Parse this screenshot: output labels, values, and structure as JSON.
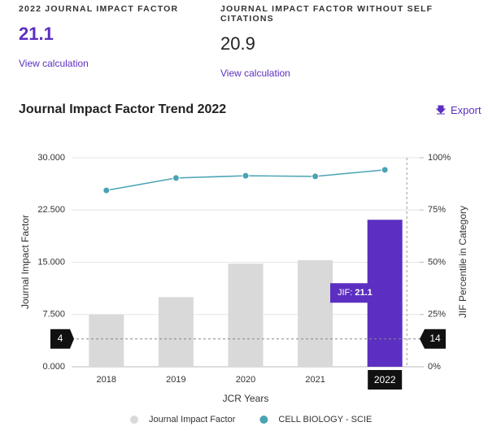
{
  "metrics": [
    {
      "label": "2022 JOURNAL IMPACT FACTOR",
      "value": 21.1,
      "link": "View calculation"
    },
    {
      "label": "JOURNAL IMPACT FACTOR WITHOUT SELF CITATIONS",
      "value": 20.9,
      "link": "View calculation"
    }
  ],
  "section": {
    "title": "Journal Impact Factor Trend 2022",
    "export": "Export"
  },
  "chart_data": {
    "type": "bar",
    "categories": [
      "2018",
      "2019",
      "2020",
      "2021",
      "2022"
    ],
    "series": [
      {
        "name": "Journal Impact Factor",
        "type": "bar",
        "color": "#d9d9d9",
        "colors": [
          "#d9d9d9",
          "#d9d9d9",
          "#d9d9d9",
          "#d9d9d9",
          "#5c2fc2"
        ],
        "values": [
          7.5,
          10.0,
          14.8,
          15.3,
          21.1
        ]
      },
      {
        "name": "CELL BIOLOGY - SCIE",
        "type": "line",
        "axis": "y2",
        "color": "#4aa3b5",
        "values": [
          84.4,
          90.3,
          91.4,
          91.1,
          94.2
        ]
      }
    ],
    "y_label": "Journal Impact Factor",
    "y2_label": "JIF Percentile in Category",
    "x_label": "JCR Years",
    "ylim": [
      0,
      30
    ],
    "yticks": [
      {
        "value": 0,
        "label": "0.000"
      },
      {
        "value": 7.5,
        "label": "7.500"
      },
      {
        "value": 15,
        "label": "15.000"
      },
      {
        "value": 22.5,
        "label": "22.500"
      },
      {
        "value": 30,
        "label": "30.000"
      }
    ],
    "y2lim": [
      0,
      100
    ],
    "y2ticks": [
      {
        "value": 0,
        "label": "0%"
      },
      {
        "value": 25,
        "label": "25%"
      },
      {
        "value": 50,
        "label": "50%"
      },
      {
        "value": 75,
        "label": "75%"
      },
      {
        "value": 100,
        "label": "100%"
      }
    ],
    "grid": true,
    "tooltip": {
      "label": "JIF:"
    },
    "crosshair": {
      "y": 4,
      "y2": 14
    }
  }
}
